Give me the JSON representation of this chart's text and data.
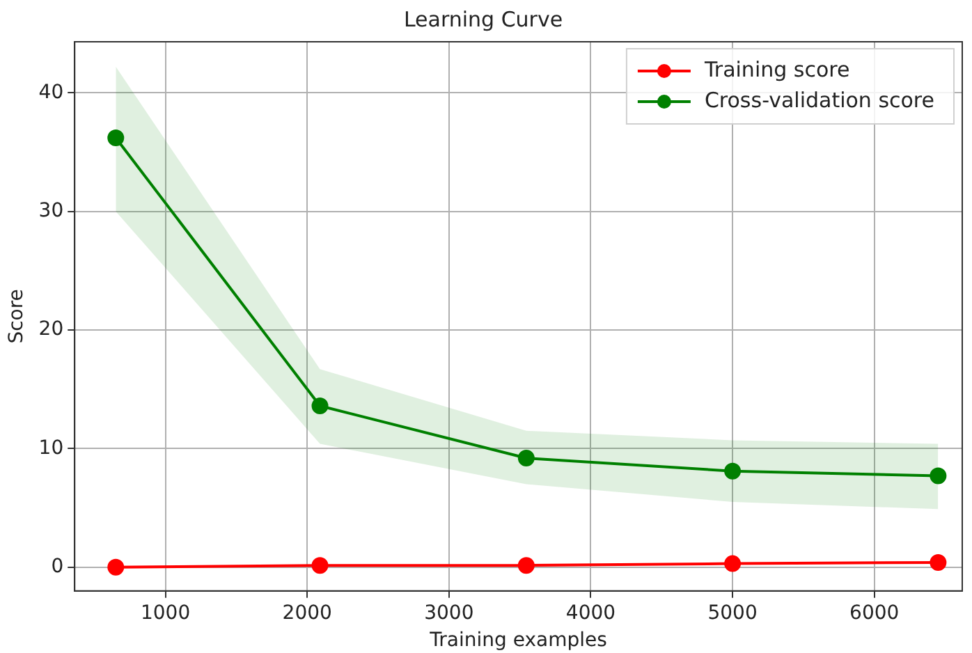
{
  "chart_data": {
    "type": "line",
    "title": "Learning Curve",
    "xlabel": "Training examples",
    "ylabel": "Score",
    "x": [
      650,
      2090,
      3545,
      5000,
      6450
    ],
    "series": [
      {
        "name": "Training score",
        "color": "#ff0000",
        "values": [
          0,
          0.15,
          0.15,
          0.3,
          0.4
        ]
      },
      {
        "name": "Cross-validation score",
        "color": "#008000",
        "values": [
          36.2,
          13.6,
          9.2,
          8.1,
          7.7
        ],
        "lower": [
          30.0,
          10.4,
          7.0,
          5.5,
          4.9
        ],
        "upper": [
          42.2,
          16.7,
          11.5,
          10.7,
          10.4
        ]
      }
    ],
    "xlim": [
      360,
      6620
    ],
    "xticks": [
      1000,
      2000,
      3000,
      4000,
      5000,
      6000
    ],
    "ylim": [
      -2.0,
      44.3
    ],
    "yticks": [
      0,
      10,
      20,
      30,
      40
    ],
    "grid": true,
    "legend": "top right",
    "marker": "circle",
    "line_style": "solid"
  }
}
